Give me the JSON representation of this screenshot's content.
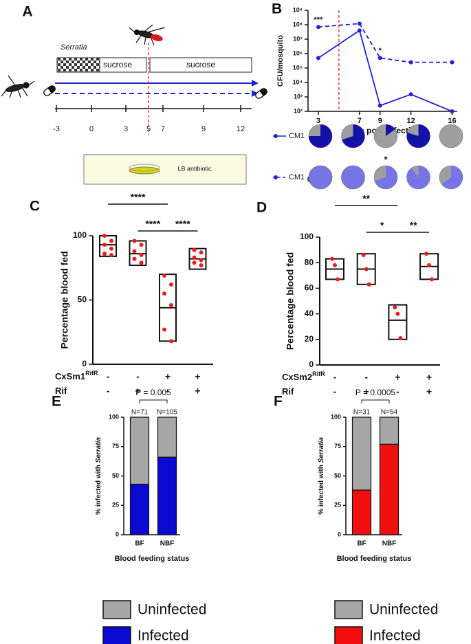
{
  "panel_a": {
    "label": "A",
    "serratia": "Serratia",
    "sucrose_1": "sucrose",
    "sucrose_2": "sucrose",
    "timeline": [
      "-3",
      "0",
      "3",
      "5",
      "7",
      "9",
      "12"
    ],
    "lb_antibiotic": "LB antibiotic"
  },
  "chart_data": [
    {
      "type": "line",
      "panel": "B",
      "ylabel": "CFU/mosquito",
      "xlabel": "Days post infection",
      "log_y": true,
      "x": [
        3,
        7,
        9,
        12,
        16
      ],
      "xlim": [
        2,
        16.5
      ],
      "xticks": [
        3,
        7,
        9,
        12,
        16
      ],
      "ylim": [
        100,
        1000000000
      ],
      "yticks": [
        {
          "value": 100,
          "label": "10²"
        },
        {
          "value": 1000,
          "label": "10³"
        },
        {
          "value": 10000,
          "label": "10⁴"
        },
        {
          "value": 100000,
          "label": "10⁵"
        },
        {
          "value": 1000000,
          "label": "10⁶"
        },
        {
          "value": 10000000,
          "label": "10⁷"
        },
        {
          "value": 100000000,
          "label": "10⁸"
        },
        {
          "value": 1000000000,
          "label": "10⁹"
        }
      ],
      "series": [
        {
          "name": "CM1",
          "color": "#1e22d8",
          "dashed": false,
          "values": [
            500000,
            40000000,
            250,
            1500,
            100
          ]
        },
        {
          "name": "CM1",
          "color": "#1e22d8",
          "dashed": true,
          "values": [
            70000000,
            120000000,
            500000,
            250000,
            250000
          ]
        }
      ],
      "annotations": [
        {
          "text": "***",
          "x": 3
        },
        {
          "text": "*",
          "x": 9
        }
      ],
      "pies": [
        {
          "name": "CM1",
          "color": "#1212a8",
          "rest_color": "#9e9e9e",
          "infected": [
            75,
            70,
            15,
            80,
            0
          ]
        },
        {
          "name": "CM1",
          "color": "#7575e6",
          "rest_color": "#9e9e9e",
          "infected": [
            100,
            100,
            70,
            90,
            65
          ],
          "annotation": {
            "text": "*",
            "x": 9
          }
        }
      ]
    },
    {
      "type": "box",
      "panel": "C",
      "ylabel": "Percentage blood fed",
      "ylim": [
        0,
        100
      ],
      "yticks": [
        0,
        50,
        100
      ],
      "groups": [
        {
          "low": 84,
          "median": 93,
          "high": 100,
          "points": [
            100,
            96,
            93,
            90,
            86,
            85
          ]
        },
        {
          "low": 77,
          "median": 86,
          "high": 96,
          "points": [
            96,
            93,
            88,
            85,
            82,
            79
          ]
        },
        {
          "low": 18,
          "median": 44,
          "high": 70,
          "points": [
            69,
            62,
            55,
            46,
            27,
            18
          ]
        },
        {
          "low": 74,
          "median": 82,
          "high": 90,
          "points": [
            89,
            87,
            83,
            81,
            79,
            77
          ]
        }
      ],
      "point_color": "#ee1c1c",
      "row_labels": [
        {
          "text": "CxSm1",
          "sup": "RifR",
          "signs": [
            "-",
            "-",
            "+",
            "+"
          ]
        },
        {
          "text": "Rif",
          "signs": [
            "-",
            "+",
            "-",
            "+"
          ]
        }
      ],
      "significance": [
        {
          "text": "****",
          "from": 0,
          "to": 2
        },
        {
          "text": "****",
          "from": 1,
          "to": 2
        },
        {
          "text": "****",
          "from": 2,
          "to": 3
        }
      ]
    },
    {
      "type": "box",
      "panel": "D",
      "ylabel": "Percentage blood fed",
      "ylim": [
        0,
        100
      ],
      "yticks": [
        0,
        20,
        40,
        60,
        80,
        100
      ],
      "groups": [
        {
          "low": 67,
          "median": 75,
          "high": 83,
          "points": [
            83,
            78,
            67
          ]
        },
        {
          "low": 63,
          "median": 75,
          "high": 87,
          "points": [
            86,
            75,
            63
          ]
        },
        {
          "low": 20,
          "median": 35,
          "high": 47,
          "points": [
            45,
            40,
            21
          ]
        },
        {
          "low": 67,
          "median": 77,
          "high": 87,
          "points": [
            87,
            78,
            67
          ]
        }
      ],
      "point_color": "#ee1c1c",
      "row_labels": [
        {
          "text": "CxSm2",
          "sup": "RifR",
          "signs": [
            "-",
            "-",
            "+",
            "+"
          ]
        },
        {
          "text": "Rif",
          "signs": [
            "-",
            "+",
            "-",
            "+"
          ]
        }
      ],
      "significance": [
        {
          "text": "**",
          "from": 0,
          "to": 2
        },
        {
          "text": "*",
          "from": 1,
          "to": 2
        },
        {
          "text": "**",
          "from": 2,
          "to": 3
        }
      ]
    },
    {
      "type": "stacked_bar",
      "panel": "E",
      "ylabel": "% infected with ",
      "ylabel_italic": "Serratia",
      "xlabel": "Blood feeding status",
      "categories": [
        "BF",
        "NBF"
      ],
      "n_labels": [
        "N=71",
        "N=105"
      ],
      "p_value": "P = 0.005",
      "ylim": [
        0,
        100
      ],
      "yticks": [
        0,
        25,
        50,
        75,
        100
      ],
      "series": [
        {
          "name": "Infected",
          "color": "#0a0ad2",
          "values": [
            43,
            66
          ]
        },
        {
          "name": "Uninfected",
          "color": "#a6a6a6",
          "values": [
            57,
            34
          ]
        }
      ]
    },
    {
      "type": "stacked_bar",
      "panel": "F",
      "ylabel": "% infected with ",
      "ylabel_italic": "Serratia",
      "xlabel": "Blood feeding status",
      "categories": [
        "BF",
        "NBF"
      ],
      "n_labels": [
        "N=31",
        "N=54"
      ],
      "p_value": "P = 0.0005",
      "ylim": [
        0,
        100
      ],
      "yticks": [
        0,
        25,
        50,
        75,
        100
      ],
      "series": [
        {
          "name": "Infected",
          "color": "#f20f0f",
          "values": [
            38,
            77
          ]
        },
        {
          "name": "Uninfected",
          "color": "#a6a6a6",
          "values": [
            62,
            23
          ]
        }
      ]
    }
  ]
}
